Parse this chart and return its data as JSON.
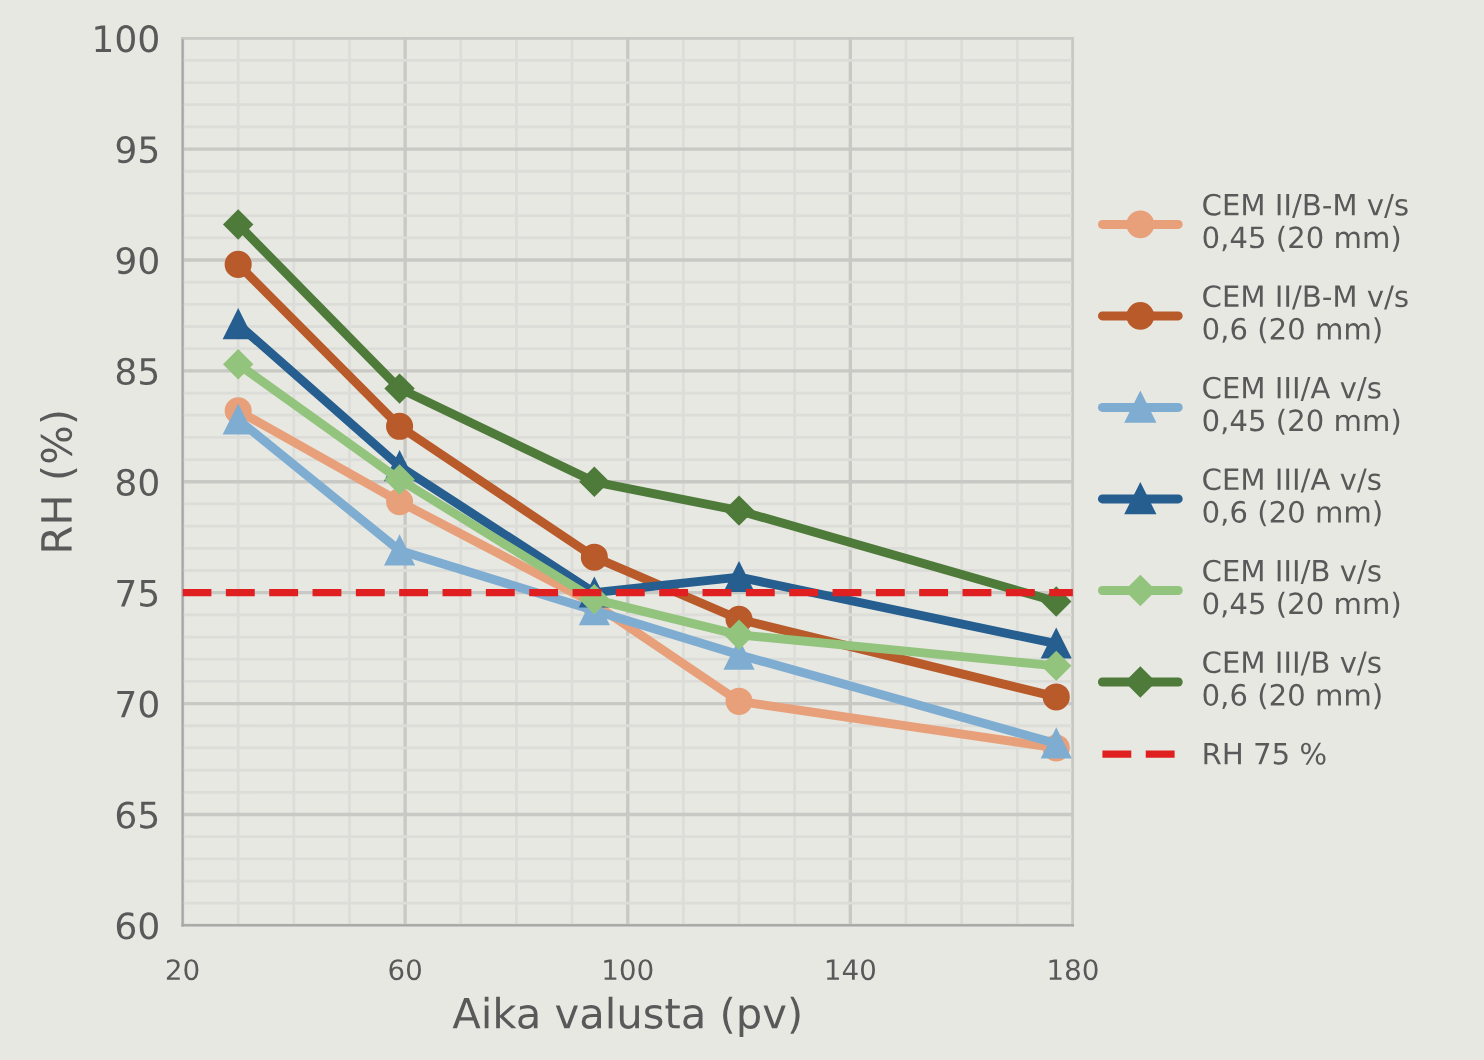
{
  "chart_data": {
    "type": "line",
    "xlabel": "Aika valusta (pv)",
    "ylabel": "RH (%)",
    "x": [
      30,
      59,
      94,
      120,
      177
    ],
    "series": [
      {
        "name": "CEM II/B-M v/s 0,45 (20 mm)",
        "color": "#e8a07a",
        "marker": "circle",
        "values": [
          83.2,
          79.1,
          74.5,
          70.1,
          68.0
        ]
      },
      {
        "name": "CEM II/B-M v/s 0,6 (20 mm)",
        "color": "#b85a2a",
        "marker": "circle",
        "values": [
          89.8,
          82.5,
          76.6,
          73.8,
          70.3
        ]
      },
      {
        "name": "CEM III/A v/s 0,45 (20 mm)",
        "color": "#7fadd1",
        "marker": "triangle",
        "values": [
          82.8,
          76.9,
          74.2,
          72.2,
          68.2
        ]
      },
      {
        "name": "CEM III/A v/s 0,6 (20 mm)",
        "color": "#255e8f",
        "marker": "triangle",
        "values": [
          87.1,
          80.7,
          75.0,
          75.7,
          72.7
        ]
      },
      {
        "name": "CEM III/B v/s 0,45 (20 mm)",
        "color": "#93c47d",
        "marker": "diamond",
        "values": [
          85.3,
          80.1,
          74.7,
          73.1,
          71.7
        ]
      },
      {
        "name": "CEM III/B v/s 0,6 (20 mm)",
        "color": "#4e7a3a",
        "marker": "diamond",
        "values": [
          91.6,
          84.2,
          80.0,
          78.7,
          74.6
        ]
      }
    ],
    "ref_lines": [
      {
        "axis": "y",
        "value": 75,
        "label": "RH 75 %",
        "color": "#e02020",
        "line_style": "dashed"
      }
    ],
    "xlim": [
      20,
      180
    ],
    "xticks": [
      20,
      60,
      100,
      140,
      180
    ],
    "ylim": [
      60,
      100
    ],
    "yticks": [
      60,
      65,
      70,
      75,
      80,
      85,
      90,
      95,
      100
    ],
    "grid": true,
    "legend": "right"
  }
}
